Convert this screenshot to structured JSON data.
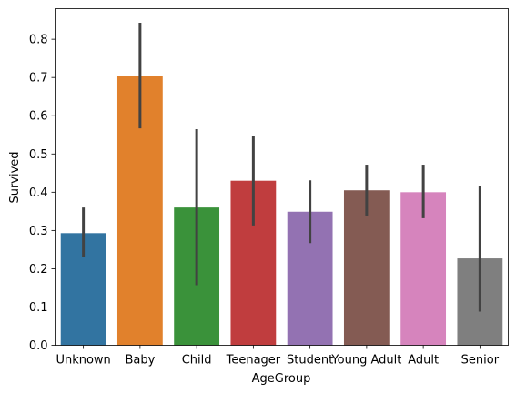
{
  "chart_data": {
    "type": "bar",
    "title": "",
    "xlabel": "AgeGroup",
    "ylabel": "Survived",
    "ylim": [
      0,
      0.88
    ],
    "yticks": [
      0.0,
      0.1,
      0.2,
      0.3,
      0.4,
      0.5,
      0.6,
      0.7,
      0.8
    ],
    "ytick_labels": [
      "0.0",
      "0.1",
      "0.2",
      "0.3",
      "0.4",
      "0.5",
      "0.6",
      "0.7",
      "0.8"
    ],
    "grid": false,
    "legend": "none",
    "categories": [
      "Unknown",
      "Baby",
      "Child",
      "Teenager",
      "Student",
      "Young Adult",
      "Adult",
      "Senior"
    ],
    "values": [
      0.293,
      0.705,
      0.36,
      0.43,
      0.349,
      0.405,
      0.4,
      0.227
    ],
    "ci_low": [
      0.23,
      0.567,
      0.157,
      0.313,
      0.267,
      0.339,
      0.332,
      0.088
    ],
    "ci_high": [
      0.36,
      0.843,
      0.565,
      0.548,
      0.431,
      0.472,
      0.472,
      0.415
    ],
    "colors": [
      "#3274a1",
      "#e1812c",
      "#3a923a",
      "#c03d3e",
      "#9372b2",
      "#845b53",
      "#d684bd",
      "#7f7f7f"
    ],
    "errorbar_color": "#424242"
  }
}
